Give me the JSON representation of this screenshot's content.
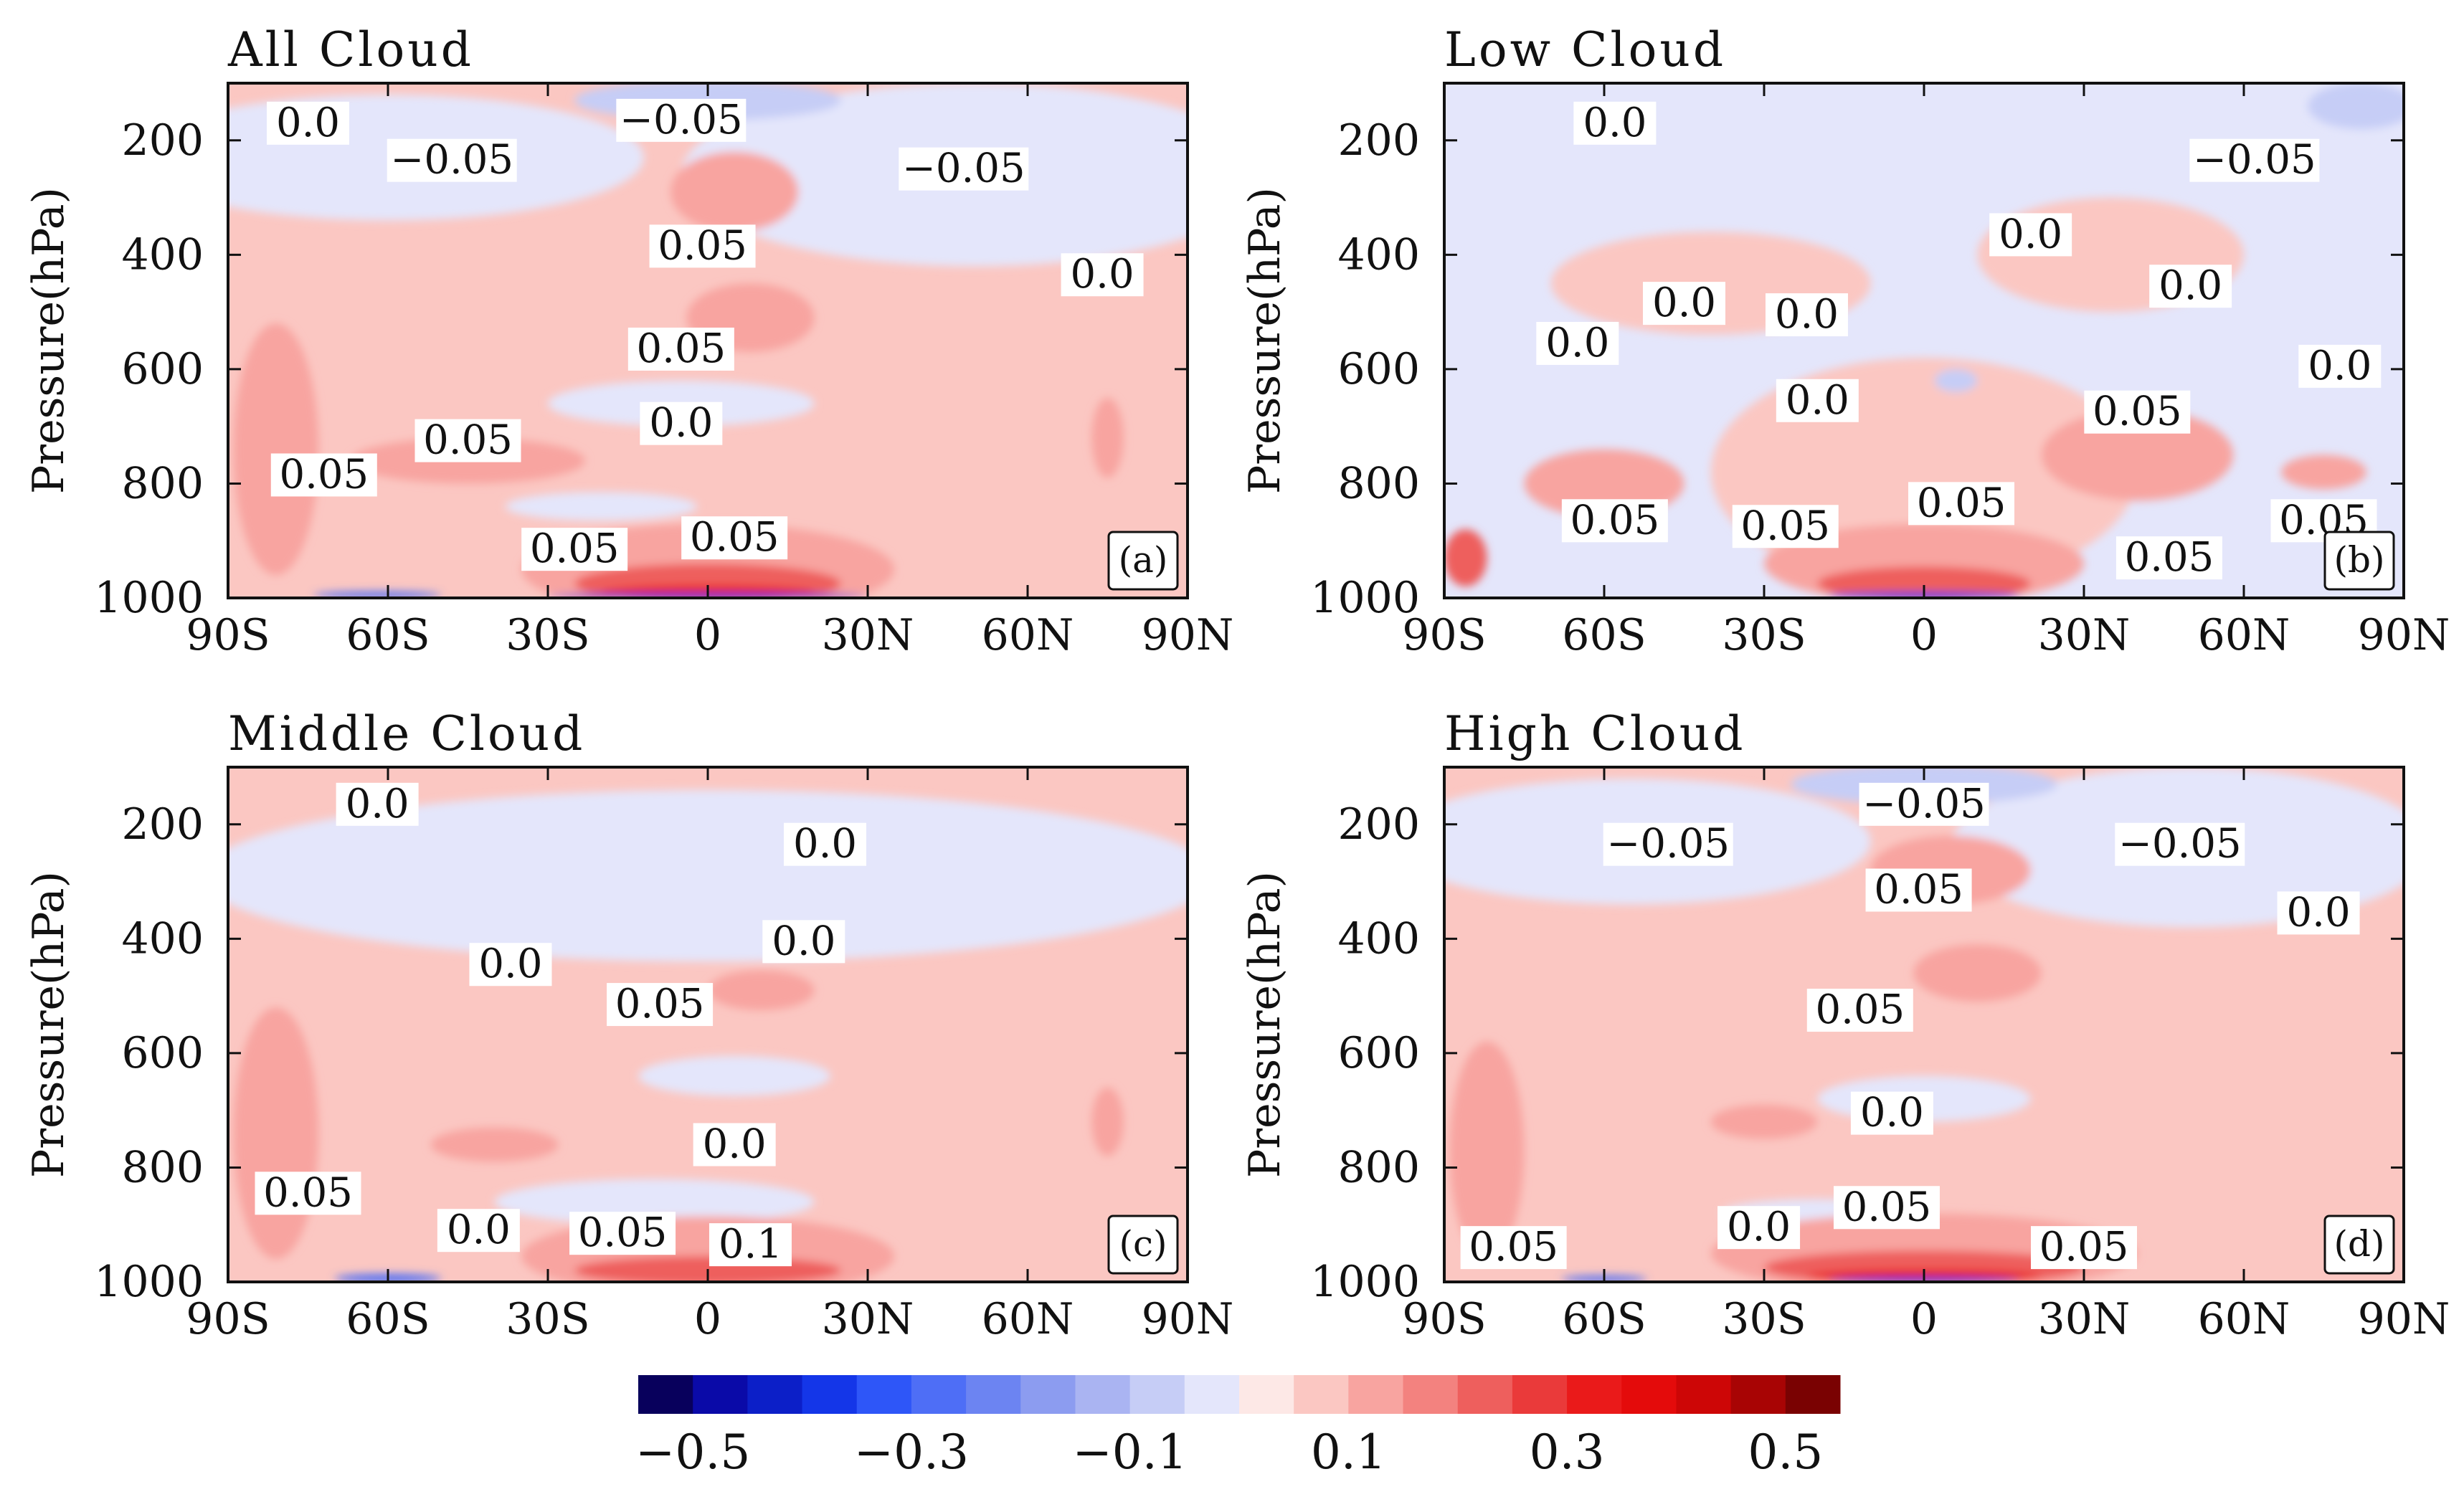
{
  "chart_data": [
    {
      "type": "heatmap",
      "panel": "(a)",
      "title": "All Cloud",
      "ylabel": "Pressure(hPa)",
      "xlabel": "",
      "xlim": [
        -90,
        90
      ],
      "ylim": [
        1000,
        100
      ],
      "xticks": [
        -90,
        -60,
        -30,
        0,
        30,
        60,
        90
      ],
      "xtick_labels": [
        "90S",
        "60S",
        "30S",
        "0",
        "30N",
        "60N",
        "90N"
      ],
      "yticks": [
        200,
        400,
        600,
        800,
        1000
      ],
      "ytick_labels": [
        "200",
        "400",
        "600",
        "800",
        "1000"
      ],
      "background_value": 0.05,
      "regions": [
        {
          "lat": -60,
          "p": 230,
          "rx": 48,
          "rp": 110,
          "value": -0.05
        },
        {
          "lat": 50,
          "p": 260,
          "rx": 55,
          "rp": 160,
          "value": -0.05
        },
        {
          "lat": 0,
          "p": 130,
          "rx": 25,
          "rp": 35,
          "value": -0.1
        },
        {
          "lat": 5,
          "p": 290,
          "rx": 12,
          "rp": 70,
          "value": 0.1
        },
        {
          "lat": 8,
          "p": 510,
          "rx": 12,
          "rp": 60,
          "value": 0.1
        },
        {
          "lat": -5,
          "p": 660,
          "rx": 25,
          "rp": 40,
          "value": -0.05
        },
        {
          "lat": -45,
          "p": 760,
          "rx": 22,
          "rp": 40,
          "value": 0.1
        },
        {
          "lat": -81,
          "p": 740,
          "rx": 8,
          "rp": 220,
          "value": 0.1
        },
        {
          "lat": -20,
          "p": 840,
          "rx": 18,
          "rp": 25,
          "value": -0.05
        },
        {
          "lat": 0,
          "p": 950,
          "rx": 35,
          "rp": 80,
          "value": 0.1
        },
        {
          "lat": 0,
          "p": 975,
          "rx": 25,
          "rp": 35,
          "value": 0.2
        },
        {
          "lat": 0,
          "p": 990,
          "rx": 20,
          "rp": 12,
          "value": 0.3
        },
        {
          "lat": 0,
          "p": 997,
          "rx": 30,
          "rp": 4,
          "value": -0.4
        },
        {
          "lat": -62,
          "p": 995,
          "rx": 12,
          "rp": 6,
          "value": -0.3
        },
        {
          "lat": 75,
          "p": 720,
          "rx": 3,
          "rp": 70,
          "value": 0.1
        }
      ],
      "contour_labels": [
        {
          "text": "0.0",
          "lat": -75,
          "p": 175
        },
        {
          "text": "−0.05",
          "lat": -48,
          "p": 240
        },
        {
          "text": "−0.05",
          "lat": -5,
          "p": 170
        },
        {
          "text": "−0.05",
          "lat": 48,
          "p": 255
        },
        {
          "text": "0.05",
          "lat": -1,
          "p": 390
        },
        {
          "text": "0.0",
          "lat": 74,
          "p": 440
        },
        {
          "text": "0.05",
          "lat": -5,
          "p": 570
        },
        {
          "text": "0.0",
          "lat": -5,
          "p": 700
        },
        {
          "text": "0.05",
          "lat": -45,
          "p": 730
        },
        {
          "text": "0.05",
          "lat": -72,
          "p": 790
        },
        {
          "text": "0.05",
          "lat": -25,
          "p": 920
        },
        {
          "text": "0.05",
          "lat": 5,
          "p": 900
        }
      ]
    },
    {
      "type": "heatmap",
      "panel": "(b)",
      "title": "Low Cloud",
      "ylabel": "Pressure(hPa)",
      "xlabel": "",
      "xlim": [
        -90,
        90
      ],
      "ylim": [
        1000,
        100
      ],
      "xticks": [
        -90,
        -60,
        -30,
        0,
        30,
        60,
        90
      ],
      "xtick_labels": [
        "90S",
        "60S",
        "30S",
        "0",
        "30N",
        "60N",
        "90N"
      ],
      "yticks": [
        200,
        400,
        600,
        800,
        1000
      ],
      "ytick_labels": [
        "200",
        "400",
        "600",
        "800",
        "1000"
      ],
      "background_value": -0.05,
      "regions": [
        {
          "lat": -40,
          "p": 450,
          "rx": 30,
          "rp": 90,
          "value": 0.05
        },
        {
          "lat": 35,
          "p": 400,
          "rx": 25,
          "rp": 100,
          "value": 0.05
        },
        {
          "lat": 0,
          "p": 780,
          "rx": 40,
          "rp": 200,
          "value": 0.05
        },
        {
          "lat": -60,
          "p": 800,
          "rx": 15,
          "rp": 60,
          "value": 0.1
        },
        {
          "lat": 40,
          "p": 750,
          "rx": 18,
          "rp": 80,
          "value": 0.1
        },
        {
          "lat": 75,
          "p": 780,
          "rx": 8,
          "rp": 30,
          "value": 0.1
        },
        {
          "lat": 0,
          "p": 940,
          "rx": 30,
          "rp": 70,
          "value": 0.1
        },
        {
          "lat": 0,
          "p": 975,
          "rx": 20,
          "rp": 30,
          "value": 0.2
        },
        {
          "lat": 0,
          "p": 996,
          "rx": 18,
          "rp": 6,
          "value": -0.4
        },
        {
          "lat": 82,
          "p": 140,
          "rx": 10,
          "rp": 40,
          "value": -0.1
        },
        {
          "lat": 6,
          "p": 620,
          "rx": 4,
          "rp": 20,
          "value": -0.1
        },
        {
          "lat": -86,
          "p": 930,
          "rx": 4,
          "rp": 50,
          "value": 0.2
        }
      ],
      "contour_labels": [
        {
          "text": "0.0",
          "lat": -58,
          "p": 175
        },
        {
          "text": "−0.05",
          "lat": 62,
          "p": 240
        },
        {
          "text": "0.0",
          "lat": 20,
          "p": 370
        },
        {
          "text": "0.0",
          "lat": 50,
          "p": 460
        },
        {
          "text": "0.0",
          "lat": 78,
          "p": 600
        },
        {
          "text": "0.0",
          "lat": -45,
          "p": 490
        },
        {
          "text": "0.0",
          "lat": -22,
          "p": 510
        },
        {
          "text": "0.0",
          "lat": -65,
          "p": 560
        },
        {
          "text": "0.0",
          "lat": -20,
          "p": 660
        },
        {
          "text": "0.05",
          "lat": 40,
          "p": 680
        },
        {
          "text": "0.05",
          "lat": 7,
          "p": 840
        },
        {
          "text": "0.05",
          "lat": -58,
          "p": 870
        },
        {
          "text": "0.05",
          "lat": -26,
          "p": 880
        },
        {
          "text": "0.05",
          "lat": 46,
          "p": 935
        },
        {
          "text": "0.05",
          "lat": 75,
          "p": 870
        }
      ]
    },
    {
      "type": "heatmap",
      "panel": "(c)",
      "title": "Middle Cloud",
      "ylabel": "Pressure(hPa)",
      "xlabel": "",
      "xlim": [
        -90,
        90
      ],
      "ylim": [
        1000,
        100
      ],
      "xticks": [
        -90,
        -60,
        -30,
        0,
        30,
        60,
        90
      ],
      "xtick_labels": [
        "90S",
        "60S",
        "30S",
        "0",
        "30N",
        "60N",
        "90N"
      ],
      "yticks": [
        200,
        400,
        600,
        800,
        1000
      ],
      "ytick_labels": [
        "200",
        "400",
        "600",
        "800",
        "1000"
      ],
      "background_value": 0.05,
      "regions": [
        {
          "lat": 0,
          "p": 290,
          "rx": 95,
          "rp": 150,
          "value": -0.05
        },
        {
          "lat": 10,
          "p": 490,
          "rx": 10,
          "rp": 35,
          "value": 0.1
        },
        {
          "lat": 5,
          "p": 640,
          "rx": 18,
          "rp": 35,
          "value": -0.05
        },
        {
          "lat": -40,
          "p": 760,
          "rx": 12,
          "rp": 30,
          "value": 0.1
        },
        {
          "lat": -81,
          "p": 740,
          "rx": 8,
          "rp": 220,
          "value": 0.1
        },
        {
          "lat": -10,
          "p": 860,
          "rx": 30,
          "rp": 40,
          "value": -0.05
        },
        {
          "lat": 0,
          "p": 955,
          "rx": 35,
          "rp": 70,
          "value": 0.1
        },
        {
          "lat": 0,
          "p": 980,
          "rx": 25,
          "rp": 25,
          "value": 0.2
        },
        {
          "lat": -60,
          "p": 994,
          "rx": 10,
          "rp": 8,
          "value": -0.3
        },
        {
          "lat": 75,
          "p": 720,
          "rx": 3,
          "rp": 60,
          "value": 0.1
        }
      ],
      "contour_labels": [
        {
          "text": "0.0",
          "lat": -62,
          "p": 170
        },
        {
          "text": "0.0",
          "lat": 22,
          "p": 240
        },
        {
          "text": "0.0",
          "lat": 18,
          "p": 410
        },
        {
          "text": "0.0",
          "lat": -37,
          "p": 450
        },
        {
          "text": "0.05",
          "lat": -9,
          "p": 520
        },
        {
          "text": "0.0",
          "lat": 5,
          "p": 765
        },
        {
          "text": "0.05",
          "lat": -75,
          "p": 850
        },
        {
          "text": "0.0",
          "lat": -43,
          "p": 915
        },
        {
          "text": "0.05",
          "lat": -16,
          "p": 920
        },
        {
          "text": "0.1",
          "lat": 8,
          "p": 940
        }
      ]
    },
    {
      "type": "heatmap",
      "panel": "(d)",
      "title": "High Cloud",
      "ylabel": "Pressure(hPa)",
      "xlabel": "",
      "xlim": [
        -90,
        90
      ],
      "ylim": [
        1000,
        100
      ],
      "xticks": [
        -90,
        -60,
        -30,
        0,
        30,
        60,
        90
      ],
      "xtick_labels": [
        "90S",
        "60S",
        "30S",
        "0",
        "30N",
        "60N",
        "90N"
      ],
      "yticks": [
        200,
        400,
        600,
        800,
        1000
      ],
      "ytick_labels": [
        "200",
        "400",
        "600",
        "800",
        "1000"
      ],
      "background_value": 0.05,
      "regions": [
        {
          "lat": -55,
          "p": 230,
          "rx": 45,
          "rp": 110,
          "value": -0.05
        },
        {
          "lat": 50,
          "p": 240,
          "rx": 45,
          "rp": 140,
          "value": -0.05
        },
        {
          "lat": 0,
          "p": 130,
          "rx": 25,
          "rp": 35,
          "value": -0.1
        },
        {
          "lat": 5,
          "p": 280,
          "rx": 15,
          "rp": 60,
          "value": 0.1
        },
        {
          "lat": 10,
          "p": 460,
          "rx": 12,
          "rp": 50,
          "value": 0.1
        },
        {
          "lat": 0,
          "p": 680,
          "rx": 20,
          "rp": 40,
          "value": -0.05
        },
        {
          "lat": -30,
          "p": 720,
          "rx": 10,
          "rp": 30,
          "value": 0.1
        },
        {
          "lat": -20,
          "p": 880,
          "rx": 18,
          "rp": 25,
          "value": -0.05
        },
        {
          "lat": -82,
          "p": 770,
          "rx": 7,
          "rp": 190,
          "value": 0.1
        },
        {
          "lat": 0,
          "p": 950,
          "rx": 40,
          "rp": 70,
          "value": 0.1
        },
        {
          "lat": 0,
          "p": 975,
          "rx": 30,
          "rp": 30,
          "value": 0.2
        },
        {
          "lat": 0,
          "p": 990,
          "rx": 22,
          "rp": 12,
          "value": 0.3
        },
        {
          "lat": 0,
          "p": 997,
          "rx": 18,
          "rp": 4,
          "value": -0.4
        },
        {
          "lat": -60,
          "p": 995,
          "rx": 8,
          "rp": 6,
          "value": -0.3
        }
      ],
      "contour_labels": [
        {
          "text": "−0.05",
          "lat": -48,
          "p": 240
        },
        {
          "text": "−0.05",
          "lat": 0,
          "p": 170
        },
        {
          "text": "−0.05",
          "lat": 48,
          "p": 240
        },
        {
          "text": "0.05",
          "lat": -1,
          "p": 320
        },
        {
          "text": "0.0",
          "lat": 74,
          "p": 360
        },
        {
          "text": "0.05",
          "lat": -12,
          "p": 530
        },
        {
          "text": "0.0",
          "lat": -6,
          "p": 710
        },
        {
          "text": "0.05",
          "lat": -7,
          "p": 875
        },
        {
          "text": "0.0",
          "lat": -31,
          "p": 910
        },
        {
          "text": "0.05",
          "lat": -77,
          "p": 945
        },
        {
          "text": "0.05",
          "lat": 30,
          "p": 945
        }
      ]
    }
  ],
  "colorbar": {
    "levels": [
      -0.55,
      -0.5,
      -0.45,
      -0.4,
      -0.35,
      -0.3,
      -0.25,
      -0.2,
      -0.15,
      -0.1,
      -0.05,
      0,
      0.05,
      0.1,
      0.15,
      0.2,
      0.25,
      0.3,
      0.35,
      0.4,
      0.45,
      0.5,
      0.55
    ],
    "colors": [
      "#08005c",
      "#0a0aa8",
      "#0c1fc8",
      "#1436e8",
      "#2e56f8",
      "#4e6ef6",
      "#6c84f2",
      "#8c9cf0",
      "#aab4f2",
      "#c6cdf6",
      "#e4e6fb",
      "#fde8e6",
      "#fbc7c2",
      "#f8a4a0",
      "#f3827f",
      "#ee5f5d",
      "#ea3a3a",
      "#ea1a1a",
      "#e40b0b",
      "#cd0606",
      "#a80404",
      "#7a0202"
    ],
    "tick_values": [
      -0.5,
      -0.3,
      -0.1,
      0.1,
      0.3,
      0.5
    ],
    "tick_labels": [
      "−0.5",
      "−0.3",
      "−0.1",
      "0.1",
      "0.3",
      "0.5"
    ]
  }
}
